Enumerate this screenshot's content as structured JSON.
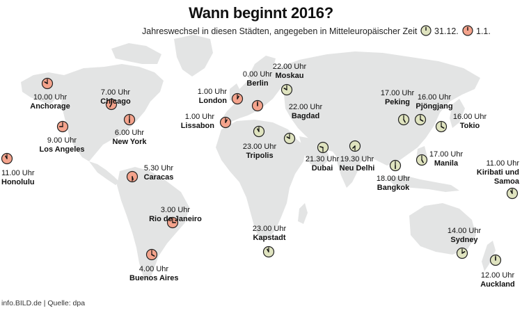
{
  "title": "Wann beginnt 2016?",
  "subtitle": "Jahreswechsel in diesen Städten, angegeben in Mitteleuropäischer Zeit",
  "legend": [
    {
      "label": "31.12.",
      "color": "#dfe3bf"
    },
    {
      "label": "1.1.",
      "color": "#f4a38c"
    }
  ],
  "footer": "info.BILD.de | Quelle: dpa",
  "colors": {
    "land": "#e3e4e4",
    "old_year": "#dfe3bf",
    "new_year": "#f4a38c",
    "stroke": "#222222"
  },
  "cities": [
    {
      "name": "Anchorage",
      "time": "10.00 Uhr",
      "day": "1.1."
    },
    {
      "name": "Chicago",
      "time": "7.00 Uhr",
      "day": "1.1."
    },
    {
      "name": "New York",
      "time": "6.00 Uhr",
      "day": "1.1."
    },
    {
      "name": "Los Angeles",
      "time": "9.00 Uhr",
      "day": "1.1."
    },
    {
      "name": "Honolulu",
      "time": "11.00 Uhr",
      "day": "1.1."
    },
    {
      "name": "Caracas",
      "time": "5.30 Uhr",
      "day": "1.1."
    },
    {
      "name": "Rio de Janeiro",
      "time": "3.00 Uhr",
      "day": "1.1."
    },
    {
      "name": "Buenos Aires",
      "time": "4.00 Uhr",
      "day": "1.1."
    },
    {
      "name": "London",
      "time": "1.00 Uhr",
      "day": "1.1."
    },
    {
      "name": "Lissabon",
      "time": "1.00 Uhr",
      "day": "1.1."
    },
    {
      "name": "Berlin",
      "time": "0.00 Uhr",
      "day": "1.1."
    },
    {
      "name": "Moskau",
      "time": "22.00 Uhr",
      "day": "31.12."
    },
    {
      "name": "Bagdad",
      "time": "22.00 Uhr",
      "day": "31.12."
    },
    {
      "name": "Tripolis",
      "time": "23.00 Uhr",
      "day": "31.12."
    },
    {
      "name": "Dubai",
      "time": "21.30 Uhr",
      "day": "31.12."
    },
    {
      "name": "Neu Delhi",
      "time": "19.30 Uhr",
      "day": "31.12."
    },
    {
      "name": "Kapstadt",
      "time": "23.00 Uhr",
      "day": "31.12."
    },
    {
      "name": "Peking",
      "time": "17.00 Uhr",
      "day": "31.12."
    },
    {
      "name": "Pjöngjang",
      "time": "16.00 Uhr",
      "day": "31.12."
    },
    {
      "name": "Tokio",
      "time": "16.00 Uhr",
      "day": "31.12."
    },
    {
      "name": "Manila",
      "time": "17.00 Uhr",
      "day": "31.12."
    },
    {
      "name": "Bangkok",
      "time": "18.00 Uhr",
      "day": "31.12."
    },
    {
      "name": "Kiribati und Samoa",
      "time": "11.00 Uhr",
      "day": "31.12."
    },
    {
      "name": "Sydney",
      "time": "14.00 Uhr",
      "day": "31.12."
    },
    {
      "name": "Auckland",
      "time": "12.00 Uhr",
      "day": "31.12."
    }
  ]
}
